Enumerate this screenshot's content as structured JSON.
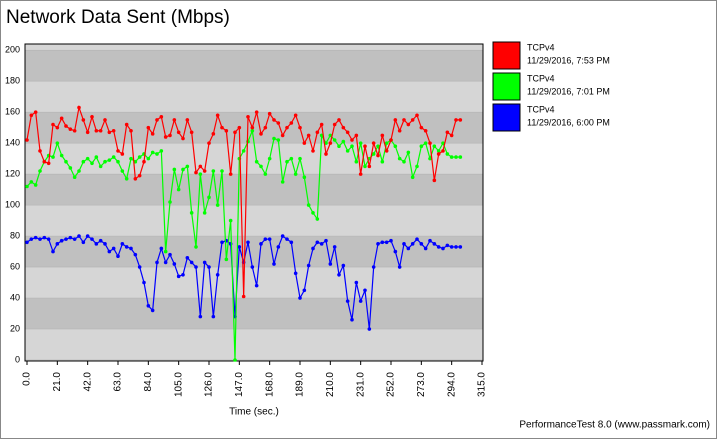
{
  "chart_data": {
    "type": "line",
    "title": "Network Data Sent (Mbps)",
    "x_label": "Time (sec.)",
    "footer": "PerformanceTest 8.0 (www.passmark.com)",
    "x": [
      0,
      3,
      6,
      9,
      12,
      15,
      18,
      21,
      24,
      27,
      30,
      33,
      36,
      39,
      42,
      45,
      48,
      51,
      54,
      57,
      60,
      63,
      66,
      69,
      72,
      75,
      78,
      81,
      84,
      87,
      90,
      93,
      96,
      99,
      102,
      105,
      108,
      111,
      114,
      117,
      120,
      123,
      126,
      129,
      132,
      135,
      138,
      141,
      144,
      147,
      150,
      153,
      156,
      159,
      162,
      165,
      168,
      171,
      174,
      177,
      180,
      183,
      186,
      189,
      192,
      195,
      198,
      201,
      204,
      207,
      210,
      213,
      216,
      219,
      222,
      225,
      228,
      231,
      234,
      237,
      240,
      243,
      246,
      249,
      252,
      255,
      258,
      261,
      264,
      267,
      270,
      273,
      276,
      279,
      282,
      285,
      288,
      291,
      294,
      297,
      300
    ],
    "series": [
      {
        "name": "TCPv4",
        "date": "11/29/2016, 7:53 PM",
        "color": "#ff0000",
        "values": [
          142,
          158,
          160,
          135,
          128,
          127,
          152,
          150,
          156,
          151,
          149,
          148,
          163,
          155,
          147,
          157,
          148,
          148,
          155,
          147,
          148,
          135,
          133,
          152,
          148,
          117,
          119,
          128,
          150,
          146,
          155,
          157,
          144,
          145,
          155,
          147,
          143,
          155,
          147,
          121,
          125,
          122,
          140,
          146,
          158,
          150,
          148,
          120,
          147,
          150,
          41,
          157,
          150,
          160,
          146,
          150,
          159,
          155,
          153,
          145,
          150,
          153,
          158,
          150,
          140,
          145,
          135,
          147,
          152,
          133,
          140,
          152,
          155,
          150,
          147,
          142,
          145,
          120,
          138,
          125,
          140,
          132,
          145,
          135,
          142,
          155,
          148,
          155,
          152,
          155,
          158,
          150,
          148,
          140,
          116,
          133,
          135,
          147,
          145,
          155,
          155
        ]
      },
      {
        "name": "TCPv4",
        "date": "11/29/2016, 7:01 PM",
        "color": "#00ff00",
        "values": [
          112,
          115,
          113,
          122,
          128,
          132,
          131,
          140,
          132,
          128,
          124,
          118,
          122,
          128,
          130,
          127,
          131,
          125,
          128,
          129,
          131,
          128,
          122,
          117,
          130,
          128,
          131,
          133,
          130,
          134,
          133,
          135,
          70,
          102,
          123,
          110,
          123,
          125,
          95,
          73,
          120,
          95,
          105,
          122,
          100,
          122,
          65,
          90,
          0,
          130,
          135,
          141,
          148,
          128,
          125,
          120,
          130,
          143,
          142,
          115,
          128,
          130,
          120,
          130,
          118,
          100,
          95,
          91,
          145,
          140,
          145,
          142,
          138,
          141,
          135,
          138,
          128,
          140,
          125,
          130,
          133,
          138,
          128,
          140,
          142,
          138,
          130,
          128,
          134,
          118,
          125,
          138,
          140,
          130,
          138,
          135,
          140,
          133,
          131,
          131,
          131
        ]
      },
      {
        "name": "TCPv4",
        "date": "11/29/2016, 6:00 PM",
        "color": "#0000ff",
        "values": [
          76,
          78,
          79,
          78,
          79,
          78,
          70,
          75,
          77,
          78,
          79,
          78,
          80,
          76,
          80,
          78,
          75,
          77,
          75,
          70,
          72,
          67,
          75,
          73,
          72,
          68,
          60,
          50,
          35,
          32,
          63,
          72,
          63,
          68,
          62,
          54,
          55,
          66,
          63,
          60,
          28,
          63,
          60,
          28,
          55,
          76,
          77,
          75,
          28,
          73,
          63,
          76,
          60,
          48,
          75,
          78,
          78,
          62,
          73,
          80,
          78,
          76,
          56,
          40,
          45,
          61,
          72,
          76,
          75,
          77,
          62,
          73,
          55,
          61,
          38,
          26,
          50,
          38,
          45,
          20,
          60,
          75,
          76,
          76,
          77,
          70,
          60,
          75,
          72,
          75,
          78,
          75,
          72,
          77,
          75,
          73,
          72,
          74,
          73,
          73,
          73
        ]
      }
    ],
    "xlim": [
      0,
      315
    ],
    "xticks": [
      {
        "value": 0,
        "label": "0.0"
      },
      {
        "value": 21,
        "label": "21.0"
      },
      {
        "value": 42,
        "label": "42.0"
      },
      {
        "value": 63,
        "label": "63.0"
      },
      {
        "value": 84,
        "label": "84.0"
      },
      {
        "value": 105,
        "label": "105.0"
      },
      {
        "value": 126,
        "label": "126.0"
      },
      {
        "value": 147,
        "label": "147.0"
      },
      {
        "value": 168,
        "label": "168.0"
      },
      {
        "value": 189,
        "label": "189.0"
      },
      {
        "value": 210,
        "label": "210.0"
      },
      {
        "value": 231,
        "label": "231.0"
      },
      {
        "value": 252,
        "label": "252.0"
      },
      {
        "value": 273,
        "label": "273.0"
      },
      {
        "value": 294,
        "label": "294.0"
      },
      {
        "value": 315,
        "label": "315.0"
      }
    ],
    "ylim": [
      0,
      204
    ],
    "yticks": [
      0,
      20,
      40,
      60,
      80,
      100,
      120,
      140,
      160,
      180,
      200
    ],
    "grid": true
  }
}
